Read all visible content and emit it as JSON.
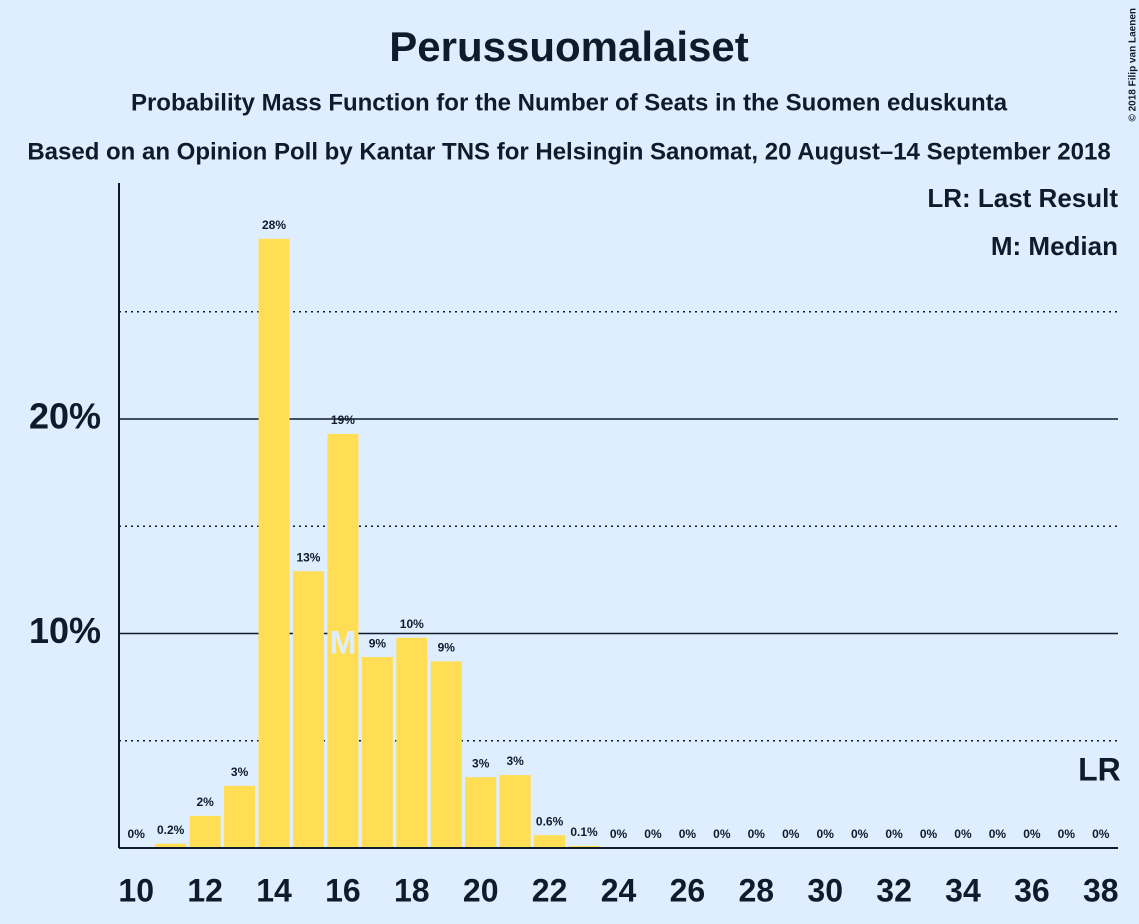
{
  "chart_data": {
    "type": "bar",
    "title": "Perussuomalaiset",
    "subtitle": "Probability Mass Function for the Number of Seats in the Suomen eduskunta",
    "subtitle2": "Based on an Opinion Poll by Kantar TNS for Helsingin Sanomat, 20 August–14 September 2018",
    "copyright": "© 2018 Filip van Laenen",
    "x": [
      10,
      11,
      12,
      13,
      14,
      15,
      16,
      17,
      18,
      19,
      20,
      21,
      22,
      23,
      24,
      25,
      26,
      27,
      28,
      29,
      30,
      31,
      32,
      33,
      34,
      35,
      36,
      37,
      38
    ],
    "values": [
      0,
      0.2,
      1.5,
      2.9,
      28.4,
      12.9,
      19.3,
      8.9,
      9.8,
      8.7,
      3.3,
      3.4,
      0.6,
      0.1,
      0,
      0,
      0,
      0,
      0,
      0,
      0,
      0,
      0,
      0,
      0,
      0,
      0,
      0,
      0
    ],
    "value_labels": [
      "0%",
      "0.2%",
      "2%",
      "3%",
      "28%",
      "13%",
      "19%",
      "9%",
      "10%",
      "9%",
      "3%",
      "3%",
      "0.6%",
      "0.1%",
      "0%",
      "0%",
      "0%",
      "0%",
      "0%",
      "0%",
      "0%",
      "0%",
      "0%",
      "0%",
      "0%",
      "0%",
      "0%",
      "0%",
      "0%"
    ],
    "color": "#ffdd55",
    "xlim": [
      9.5,
      38.5
    ],
    "xticks": [
      10,
      12,
      14,
      16,
      18,
      20,
      22,
      24,
      26,
      28,
      30,
      32,
      34,
      36,
      38
    ],
    "ylim": [
      0,
      31
    ],
    "yticks": [
      {
        "value": 10,
        "label": "10%"
      },
      {
        "value": 20,
        "label": "20%"
      }
    ],
    "minor_yticks": [
      5,
      15,
      25
    ],
    "grid": true,
    "median": 16,
    "median_label": "M",
    "last_result": 38,
    "last_result_label": "LR",
    "legend": [
      "LR: Last Result",
      "M: Median"
    ]
  }
}
